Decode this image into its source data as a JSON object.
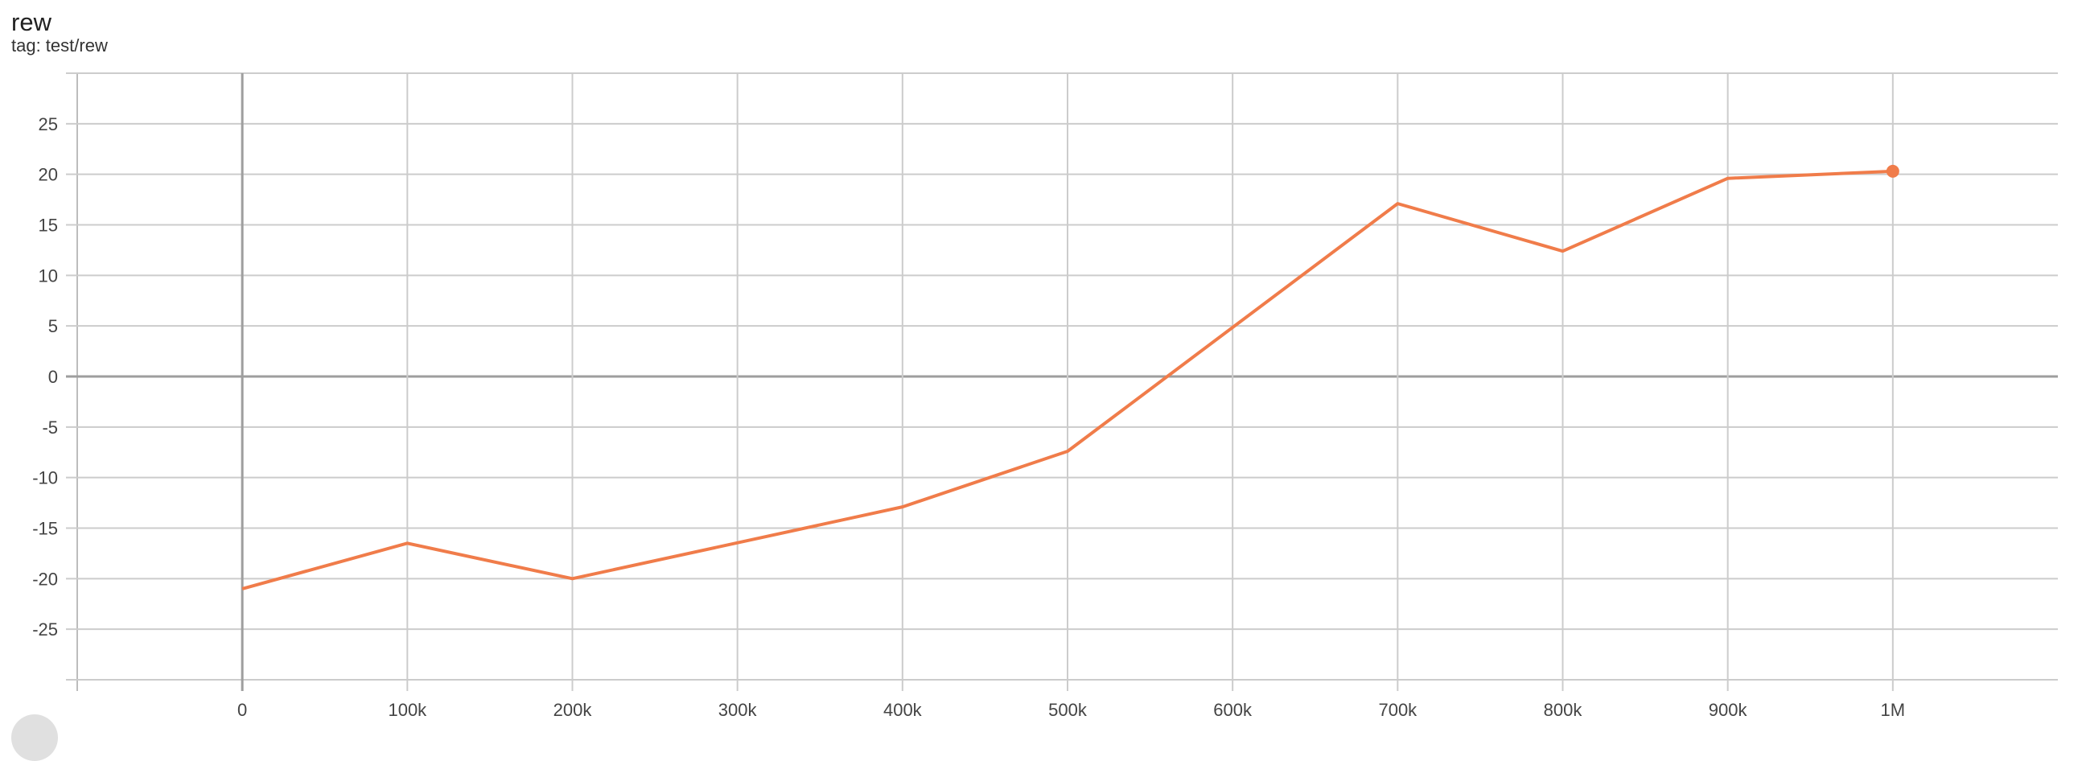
{
  "header": {
    "title": "rew",
    "subtitle": "tag: test/rew"
  },
  "chart_data": {
    "type": "line",
    "title": "rew",
    "subtitle": "tag: test/rew",
    "xlabel": "",
    "ylabel": "",
    "xlim": [
      -100000,
      1100000
    ],
    "ylim": [
      -30,
      30
    ],
    "grid": true,
    "x_ticks": [
      0,
      100000,
      200000,
      300000,
      400000,
      500000,
      600000,
      700000,
      800000,
      900000,
      1000000
    ],
    "x_tick_labels": [
      "0",
      "100k",
      "200k",
      "300k",
      "400k",
      "500k",
      "600k",
      "700k",
      "800k",
      "900k",
      "1M"
    ],
    "y_ticks": [
      25,
      20,
      15,
      10,
      5,
      0,
      -5,
      -10,
      -15,
      -20,
      -25
    ],
    "y_tick_labels": [
      "25",
      "20",
      "15",
      "10",
      "5",
      "0",
      "-5",
      "-10",
      "-15",
      "-20",
      "-25"
    ],
    "series": [
      {
        "color": "#f07c4a",
        "x": [
          0,
          100000,
          200000,
          400000,
          500000,
          700000,
          800000,
          900000,
          1000000
        ],
        "y": [
          -21.0,
          -16.5,
          -20.0,
          -12.9,
          -7.4,
          17.1,
          12.4,
          19.6,
          20.3
        ]
      }
    ]
  },
  "colors": {
    "grid": "#cccccc",
    "zero_axis": "#9e9e9e",
    "series": "#f07c4a"
  }
}
